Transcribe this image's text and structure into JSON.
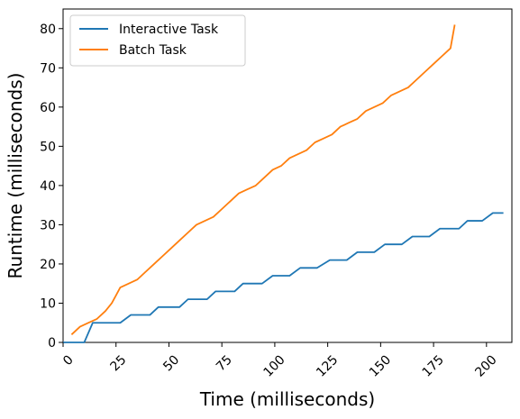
{
  "chart_data": {
    "type": "line",
    "title": "",
    "xlabel": "Time (milliseconds)",
    "ylabel": "Runtime (milliseconds)",
    "xlim": [
      0,
      212
    ],
    "ylim": [
      0,
      85
    ],
    "xticks": [
      0,
      25,
      50,
      75,
      100,
      125,
      150,
      175,
      200
    ],
    "yticks": [
      0,
      10,
      20,
      30,
      40,
      50,
      60,
      70,
      80
    ],
    "xtick_rotation": "45",
    "grid": false,
    "legend": "upper-left",
    "series": [
      {
        "name": "Interactive Task",
        "color": "#1f77b4",
        "x": [
          0,
          10,
          14,
          27,
          32,
          41,
          45,
          55,
          59,
          68,
          72,
          81,
          85,
          94,
          99,
          107,
          112,
          120,
          126,
          134,
          139,
          147,
          152,
          160,
          165,
          173,
          178,
          187,
          191,
          198,
          203,
          208
        ],
        "y": [
          0,
          0,
          5,
          5,
          7,
          7,
          9,
          9,
          11,
          11,
          13,
          13,
          15,
          15,
          17,
          17,
          19,
          19,
          21,
          21,
          23,
          23,
          25,
          25,
          27,
          27,
          29,
          29,
          31,
          31,
          33,
          33
        ]
      },
      {
        "name": "Batch Task",
        "color": "#ff7f0e",
        "x": [
          4,
          8,
          12,
          16,
          20,
          23,
          27,
          31,
          35,
          39,
          43,
          47,
          51,
          55,
          59,
          63,
          67,
          71,
          75,
          79,
          83,
          87,
          91,
          95,
          99,
          103,
          107,
          111,
          115,
          119,
          123,
          127,
          131,
          135,
          139,
          143,
          147,
          151,
          155,
          159,
          163,
          167,
          171,
          175,
          179,
          183,
          185
        ],
        "y": [
          2,
          4,
          5,
          6,
          8,
          10,
          14,
          15,
          16,
          18,
          20,
          22,
          24,
          26,
          28,
          30,
          31,
          32,
          34,
          36,
          38,
          39,
          40,
          42,
          44,
          45,
          47,
          48,
          49,
          51,
          52,
          53,
          55,
          56,
          57,
          59,
          60,
          61,
          63,
          64,
          65,
          67,
          69,
          71,
          73,
          75,
          81
        ]
      }
    ]
  }
}
